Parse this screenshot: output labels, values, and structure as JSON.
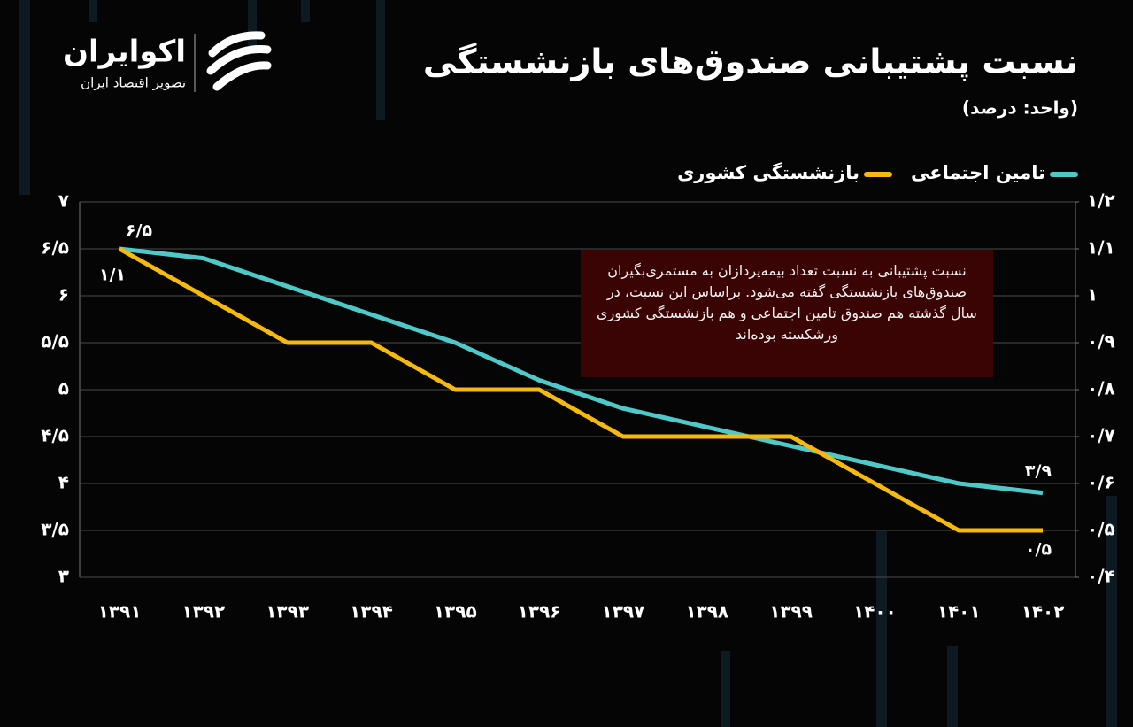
{
  "brand": {
    "name": "اکوایران",
    "tagline": "تصویر اقتصاد ایران"
  },
  "chart_data": {
    "type": "line",
    "title": "نسبت پشتیبانی صندوق‌های بازنشستگی",
    "subtitle": "(واحد: درصد)",
    "annotation": "نسبت پشتیبانی به نسبت تعداد بیمه‌پردازان به مستمری‌بگیران صندوق‌های بازنشستگی گفته می‌شود. براساس این نسبت، در سال گذشته هم صندوق تامین اجتماعی و هم بازنشستگی کشوری ورشکسته بوده‌اند",
    "categories": [
      "۱۳۹۱",
      "۱۳۹۲",
      "۱۳۹۳",
      "۱۳۹۴",
      "۱۳۹۵",
      "۱۳۹۶",
      "۱۳۹۷",
      "۱۳۹۸",
      "۱۳۹۹",
      "۱۴۰۰",
      "۱۴۰۱",
      "۱۴۰۲"
    ],
    "series": [
      {
        "name": "تامین اجتماعی",
        "color": "#4fc8c8",
        "values": [
          6.5,
          6.4,
          6.1,
          5.8,
          5.5,
          5.1,
          4.8,
          4.6,
          4.4,
          4.2,
          4.0,
          3.9
        ],
        "value_labels": [
          "۶/۵",
          null,
          null,
          null,
          null,
          null,
          null,
          null,
          null,
          null,
          null,
          "۳/۹"
        ]
      },
      {
        "name": "بازنشستگی کشوری",
        "color": "#f5b90f",
        "axis": "y2",
        "values": [
          1.1,
          1.0,
          0.9,
          0.9,
          0.8,
          0.8,
          0.7,
          0.7,
          0.7,
          0.6,
          0.5,
          0.5
        ],
        "value_labels": [
          "۱/۱",
          null,
          null,
          null,
          null,
          null,
          null,
          null,
          null,
          null,
          null,
          "۰/۵"
        ]
      }
    ],
    "ylim": [
      3,
      7
    ],
    "yticks": [
      {
        "value": 3,
        "label": "۳"
      },
      {
        "value": 3.5,
        "label": "۳/۵"
      },
      {
        "value": 4,
        "label": "۴"
      },
      {
        "value": 4.5,
        "label": "۴/۵"
      },
      {
        "value": 5,
        "label": "۵"
      },
      {
        "value": 5.5,
        "label": "۵/۵"
      },
      {
        "value": 6,
        "label": "۶"
      },
      {
        "value": 6.5,
        "label": "۶/۵"
      },
      {
        "value": 7,
        "label": "۷"
      }
    ],
    "y2lim": [
      0.4,
      1.2
    ],
    "y2ticks": [
      {
        "value": 0.4,
        "label": "۰/۴"
      },
      {
        "value": 0.5,
        "label": "۰/۵"
      },
      {
        "value": 0.6,
        "label": "۰/۶"
      },
      {
        "value": 0.7,
        "label": "۰/۷"
      },
      {
        "value": 0.8,
        "label": "۰/۸"
      },
      {
        "value": 0.9,
        "label": "۰/۹"
      },
      {
        "value": 1,
        "label": "۱"
      },
      {
        "value": 1.1,
        "label": "۱/۱"
      },
      {
        "value": 1.2,
        "label": "۱/۲"
      }
    ],
    "grid": true
  }
}
